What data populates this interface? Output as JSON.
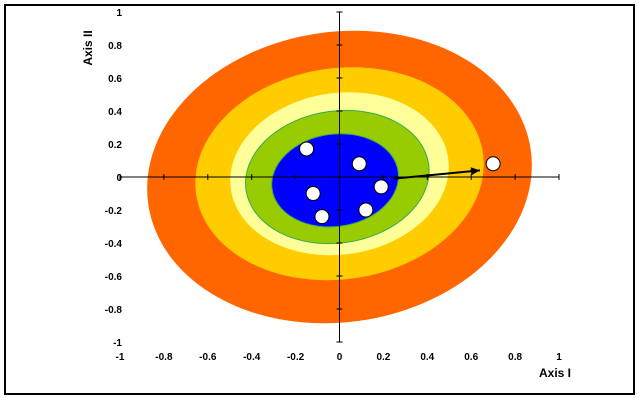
{
  "chart_data": {
    "type": "scatter",
    "xlabel": "Axis I",
    "ylabel": "Axis II",
    "xlim": [
      -1,
      1
    ],
    "ylim": [
      -1,
      1
    ],
    "xticks": [
      "-1",
      "-0.8",
      "-0.6",
      "-0.4",
      "-0.2",
      "0",
      "0.2",
      "0.4",
      "0.6",
      "0.8",
      "1"
    ],
    "yticks": [
      "-1",
      "-0.8",
      "-0.6",
      "-0.4",
      "-0.2",
      "0",
      "0.2",
      "0.4",
      "0.6",
      "0.8",
      "1"
    ],
    "grid": false,
    "tolerance_zones": [
      {
        "cx": 0.0,
        "cy": 0.0,
        "rx": 0.88,
        "ry": 0.88,
        "color": "#ff6600"
      },
      {
        "cx": 0.0,
        "cy": 0.02,
        "rx": 0.66,
        "ry": 0.64,
        "color": "#ffcc00"
      },
      {
        "cx": 0.0,
        "cy": 0.02,
        "rx": 0.5,
        "ry": 0.49,
        "color": "#ffff99"
      },
      {
        "cx": -0.01,
        "cy": 0.0,
        "rx": 0.42,
        "ry": 0.4,
        "color": "#99cc00"
      },
      {
        "cx": -0.02,
        "cy": -0.02,
        "rx": 0.29,
        "ry": 0.28,
        "color": "#0000ff"
      }
    ],
    "points": [
      {
        "x": -0.15,
        "y": 0.17
      },
      {
        "x": 0.09,
        "y": 0.08
      },
      {
        "x": 0.19,
        "y": -0.06
      },
      {
        "x": -0.12,
        "y": -0.1
      },
      {
        "x": 0.12,
        "y": -0.2
      },
      {
        "x": -0.08,
        "y": -0.24
      },
      {
        "x": 0.7,
        "y": 0.08
      }
    ],
    "arrow": {
      "from": [
        0.25,
        -0.01
      ],
      "to": [
        0.64,
        0.04
      ]
    }
  },
  "colors": {
    "point_fill": "#ffffff",
    "point_stroke": "#000000",
    "arrow": "#000000",
    "background": "#ffffff"
  }
}
